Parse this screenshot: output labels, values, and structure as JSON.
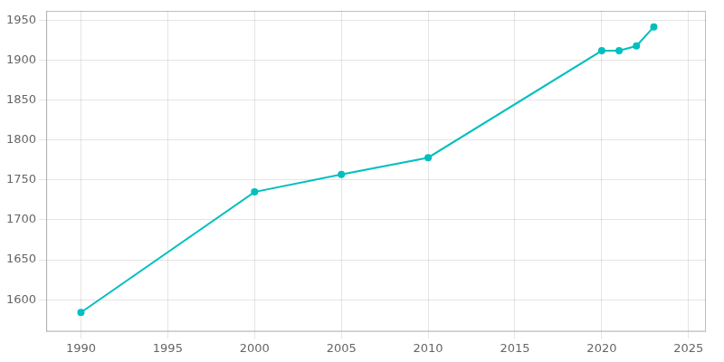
{
  "chart_data": {
    "type": "line",
    "x": [
      1990,
      2000,
      2005,
      2010,
      2020,
      2021,
      2022,
      2023
    ],
    "values": [
      1584,
      1735,
      1757,
      1778,
      1912,
      1912,
      1918,
      1942
    ],
    "color": "#00BFBF",
    "marker": "circle",
    "xlim": [
      1988,
      2026
    ],
    "ylim": [
      1560,
      1962
    ],
    "xticks": [
      1990,
      1995,
      2000,
      2005,
      2010,
      2015,
      2020,
      2025
    ],
    "yticks": [
      1600,
      1650,
      1700,
      1750,
      1800,
      1850,
      1900,
      1950
    ],
    "grid": true
  }
}
